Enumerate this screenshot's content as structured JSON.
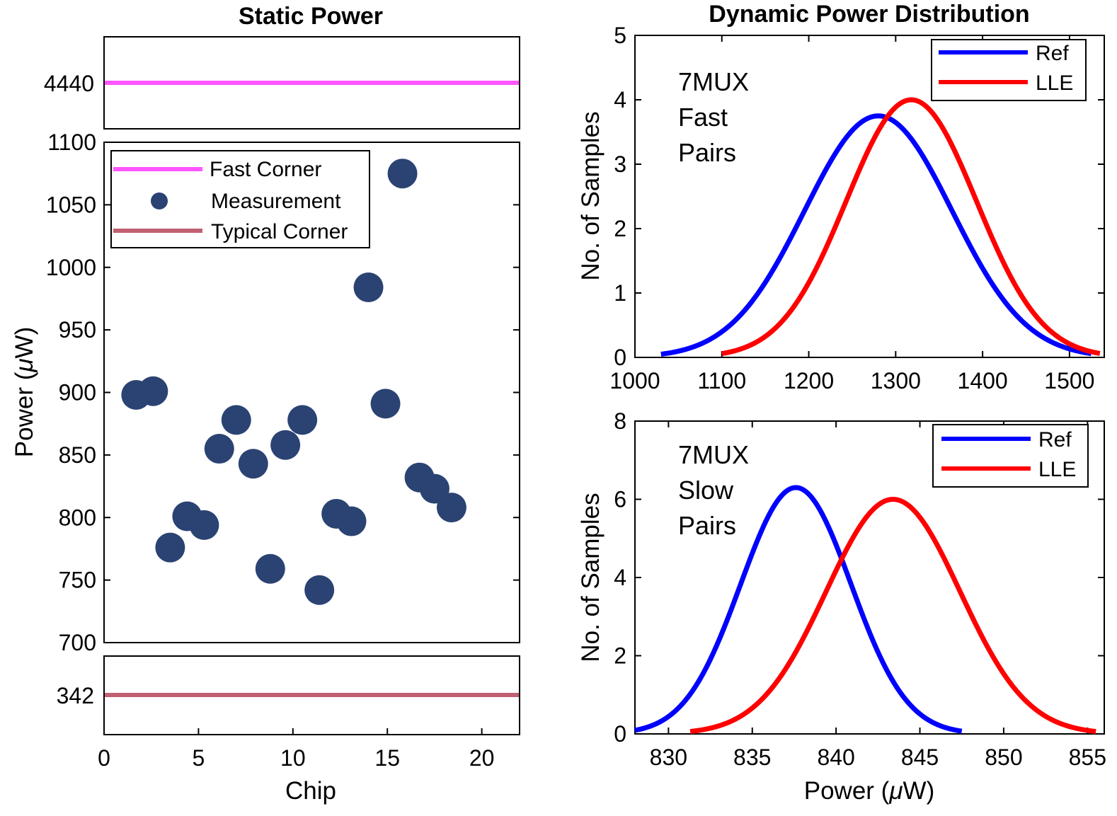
{
  "chart_data": [
    {
      "id": "static",
      "type": "scatter",
      "title": "Static Power",
      "xlabel": "Chip",
      "ylabel_main": "Power (",
      "ylabel_mu": "μ",
      "ylabel_unit": "W)",
      "xlim": [
        0,
        22
      ],
      "xticks": [
        "0",
        "5",
        "10",
        "15",
        "20"
      ],
      "ylim": [
        700,
        1100
      ],
      "yticks": [
        "700",
        "750",
        "800",
        "850",
        "900",
        "950",
        "1000",
        "1050",
        "1100"
      ],
      "fast_corner": {
        "label": "Fast Corner",
        "value": 4440,
        "tick": "4440",
        "color": "#ff55ff"
      },
      "typical_corner": {
        "label": "Typical Corner",
        "value": 342,
        "tick": "342",
        "color": "#c06070"
      },
      "measurement": {
        "label": "Measurement",
        "color": "#2b4373"
      },
      "x": [
        1.7,
        2.6,
        3.5,
        4.4,
        5.3,
        6.1,
        7.0,
        7.9,
        8.8,
        9.6,
        10.5,
        11.4,
        12.3,
        13.1,
        14.0,
        14.9,
        15.8,
        16.7,
        17.5,
        18.4
      ],
      "y": [
        898,
        901,
        776,
        801,
        794,
        855,
        878,
        843,
        759,
        858,
        878,
        742,
        803,
        797,
        984,
        891,
        1075,
        832,
        823,
        808
      ]
    },
    {
      "id": "fast",
      "type": "line",
      "title": "Dynamic Power Distribution",
      "ylabel": "No. of Samples",
      "annotation": [
        "7MUX",
        "Fast",
        "Pairs"
      ],
      "xlim": [
        1000,
        1540
      ],
      "xticks": [
        "1000",
        "1100",
        "1200",
        "1300",
        "1400",
        "1500"
      ],
      "ylim": [
        0,
        5
      ],
      "yticks": [
        "0",
        "1",
        "2",
        "3",
        "4",
        "5"
      ],
      "series": [
        {
          "name": "Ref",
          "color": "#0000ff",
          "mean": 1280,
          "sd": 85,
          "peak": 3.75,
          "range": [
            1030,
            1525
          ]
        },
        {
          "name": "LLE",
          "color": "#ff0000",
          "mean": 1318,
          "sd": 75,
          "peak": 4.0,
          "range": [
            1100,
            1535
          ]
        }
      ]
    },
    {
      "id": "slow",
      "type": "line",
      "xlabel_main": "Power (",
      "xlabel_mu": "μ",
      "xlabel_unit": "W)",
      "ylabel": "No. of Samples",
      "annotation": [
        "7MUX",
        "Slow",
        "Pairs"
      ],
      "xlim": [
        828,
        856
      ],
      "xticks": [
        "830",
        "835",
        "840",
        "845",
        "850",
        "855"
      ],
      "ylim": [
        0,
        8
      ],
      "yticks": [
        "0",
        "2",
        "4",
        "6",
        "8"
      ],
      "series": [
        {
          "name": "Ref",
          "color": "#0000ff",
          "mean": 837.6,
          "sd": 3.3,
          "peak": 6.3,
          "range": [
            828,
            847.5
          ]
        },
        {
          "name": "LLE",
          "color": "#ff0000",
          "mean": 843.4,
          "sd": 4.0,
          "peak": 6.0,
          "range": [
            831.3,
            855.5
          ]
        }
      ]
    }
  ]
}
